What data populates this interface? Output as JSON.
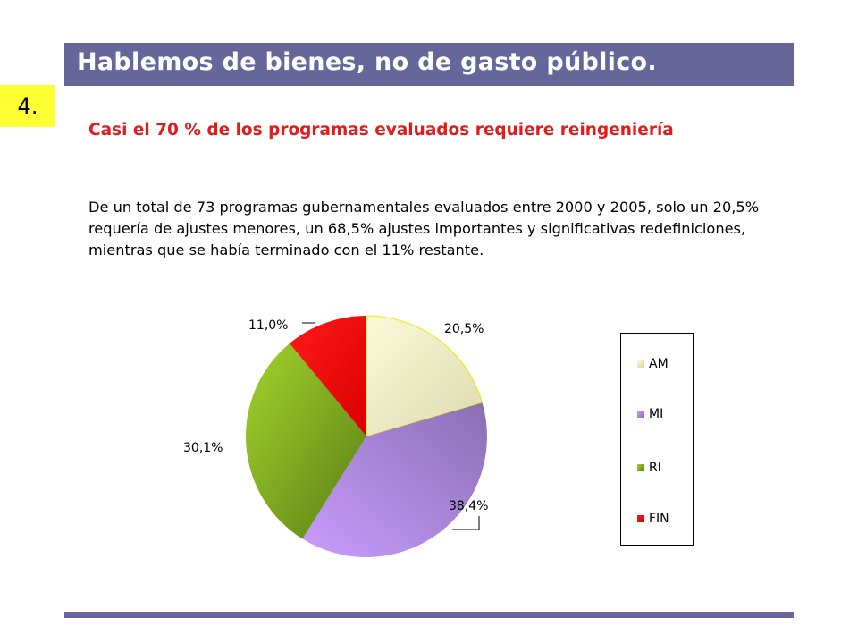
{
  "header": {
    "title": "Hablemos de bienes, no de gasto público.",
    "section_number": "4."
  },
  "content": {
    "subtitle": "Casi el 70 % de los programas evaluados requiere reingeniería",
    "paragraph": "De un total de  73 programas gubernamentales evaluados entre 2000 y 2005, solo un 20,5% requería de ajustes menores, un 68,5% ajustes importantes y significativas redefiniciones, mientras que se había terminado con el 11% restante."
  },
  "colors": {
    "title_bar": "#66669a",
    "number_box": "#ffff33",
    "subtitle": "#e41b1b"
  },
  "chart_data": {
    "type": "pie",
    "categories": [
      "AM",
      "MI",
      "RI",
      "FIN"
    ],
    "values": [
      20.5,
      38.4,
      30.1,
      11.0
    ],
    "labels": [
      "20,5%",
      "38,4%",
      "30,1%",
      "11,0%"
    ],
    "colors": [
      "#efedc2",
      "#a88dd8",
      "#6e9a1e",
      "#ee1111"
    ],
    "legend_position": "right",
    "title": ""
  }
}
